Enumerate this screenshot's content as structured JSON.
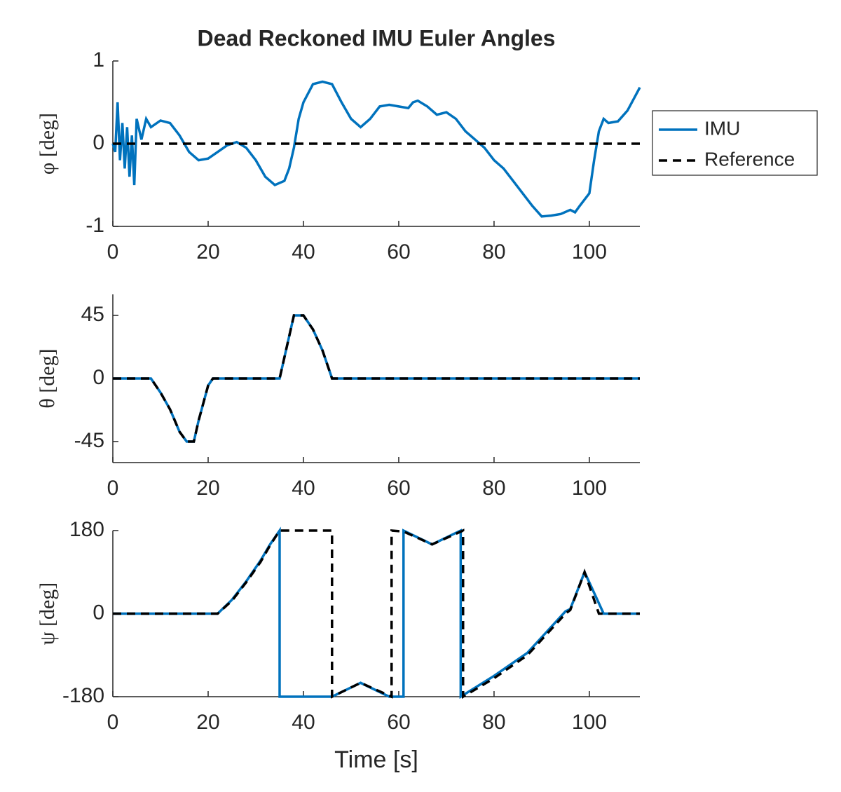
{
  "chart_data": [
    {
      "type": "line",
      "title": "Dead Reckoned IMU Euler Angles",
      "ylabel": "φ [deg]",
      "xlim": [
        0,
        110.6
      ],
      "xticks": [
        0,
        20,
        40,
        60,
        80,
        100
      ],
      "ylim": [
        -1,
        1
      ],
      "yticks": [
        -1,
        0,
        1
      ],
      "legend": "outside-right",
      "series": [
        {
          "name": "IMU",
          "color": "#0072bd",
          "style": "solid",
          "x": [
            0,
            0.5,
            1,
            1.5,
            2,
            2.5,
            3,
            3.5,
            4,
            4.5,
            5,
            6,
            7,
            8,
            10,
            12,
            14,
            16,
            18,
            20,
            22,
            24,
            26,
            28,
            30,
            32,
            34,
            36,
            37,
            38,
            39,
            40,
            42,
            44,
            46,
            48,
            50,
            52,
            54,
            56,
            58,
            60,
            62,
            63,
            64,
            66,
            68,
            70,
            72,
            74,
            76,
            78,
            80,
            82,
            84,
            86,
            88,
            90,
            92,
            94,
            96,
            97,
            98,
            100,
            101,
            102,
            103,
            104,
            106,
            108,
            110.6
          ],
          "values": [
            0,
            -0.1,
            0.5,
            -0.2,
            0.25,
            -0.3,
            0.2,
            -0.4,
            0.1,
            -0.5,
            0.3,
            0.05,
            0.3,
            0.2,
            0.28,
            0.25,
            0.1,
            -0.1,
            -0.2,
            -0.18,
            -0.1,
            -0.02,
            0.02,
            -0.05,
            -0.2,
            -0.4,
            -0.5,
            -0.45,
            -0.3,
            -0.05,
            0.3,
            0.5,
            0.72,
            0.75,
            0.72,
            0.5,
            0.3,
            0.2,
            0.3,
            0.45,
            0.47,
            0.45,
            0.43,
            0.5,
            0.52,
            0.45,
            0.35,
            0.38,
            0.3,
            0.15,
            0.05,
            -0.05,
            -0.2,
            -0.3,
            -0.45,
            -0.6,
            -0.75,
            -0.88,
            -0.87,
            -0.85,
            -0.8,
            -0.83,
            -0.75,
            -0.6,
            -0.2,
            0.15,
            0.3,
            0.25,
            0.27,
            0.4,
            0.68
          ]
        },
        {
          "name": "Reference",
          "color": "#000000",
          "style": "dashed",
          "x": [
            0,
            110.6
          ],
          "values": [
            0,
            0
          ]
        }
      ]
    },
    {
      "type": "line",
      "ylabel": "θ [deg]",
      "xlim": [
        0,
        110.6
      ],
      "xticks": [
        0,
        20,
        40,
        60,
        80,
        100
      ],
      "ylim": [
        -60,
        60
      ],
      "yticks": [
        -45,
        0,
        45
      ],
      "series": [
        {
          "color": "#0072bd",
          "style": "solid",
          "x": [
            0,
            8,
            10,
            12,
            14,
            15.5,
            17,
            18,
            20,
            21,
            35,
            37,
            38,
            40,
            42,
            44,
            46,
            110.6
          ],
          "values": [
            0,
            0,
            -10,
            -22,
            -38,
            -45,
            -45,
            -30,
            -5,
            0,
            0,
            30,
            45,
            45,
            35,
            20,
            0,
            0
          ]
        },
        {
          "color": "#000000",
          "style": "dashed",
          "x": [
            0,
            8,
            10,
            12,
            14,
            15.5,
            17,
            18,
            20,
            21,
            35,
            37,
            38,
            40,
            42,
            44,
            46,
            110.6
          ],
          "values": [
            0,
            0,
            -10,
            -22,
            -38,
            -45,
            -45,
            -30,
            -5,
            0,
            0,
            30,
            45,
            45,
            35,
            20,
            0,
            0
          ]
        }
      ]
    },
    {
      "type": "line",
      "ylabel": "ψ [deg]",
      "xlabel": "Time [s]",
      "xlim": [
        0,
        110.6
      ],
      "xticks": [
        0,
        20,
        40,
        60,
        80,
        100
      ],
      "ylim": [
        -180,
        180
      ],
      "yticks": [
        -180,
        0,
        180
      ],
      "series": [
        {
          "color": "#0072bd",
          "style": "solid",
          "x": [
            0,
            22,
            25,
            28,
            31,
            33,
            35,
            35,
            46,
            52,
            58,
            61,
            61,
            67,
            73,
            73,
            80,
            87,
            95,
            96,
            99,
            103,
            110.6
          ],
          "values": [
            0,
            0,
            30,
            70,
            115,
            150,
            180,
            -180,
            -180,
            -150,
            -180,
            -180,
            180,
            150,
            180,
            -180,
            -135,
            -85,
            5,
            10,
            90,
            0,
            0
          ]
        },
        {
          "color": "#000000",
          "style": "dashed",
          "x": [
            0,
            22,
            25,
            28,
            31,
            33,
            35,
            46,
            46,
            52,
            58.5,
            58.5,
            61,
            67,
            73.5,
            73.5,
            80,
            87,
            95,
            96,
            99,
            102,
            110.6
          ],
          "values": [
            0,
            0,
            28,
            68,
            112,
            148,
            180,
            180,
            -180,
            -150,
            -180,
            180,
            178,
            150,
            180,
            -180,
            -140,
            -90,
            0,
            8,
            90,
            0,
            0
          ]
        }
      ]
    }
  ]
}
